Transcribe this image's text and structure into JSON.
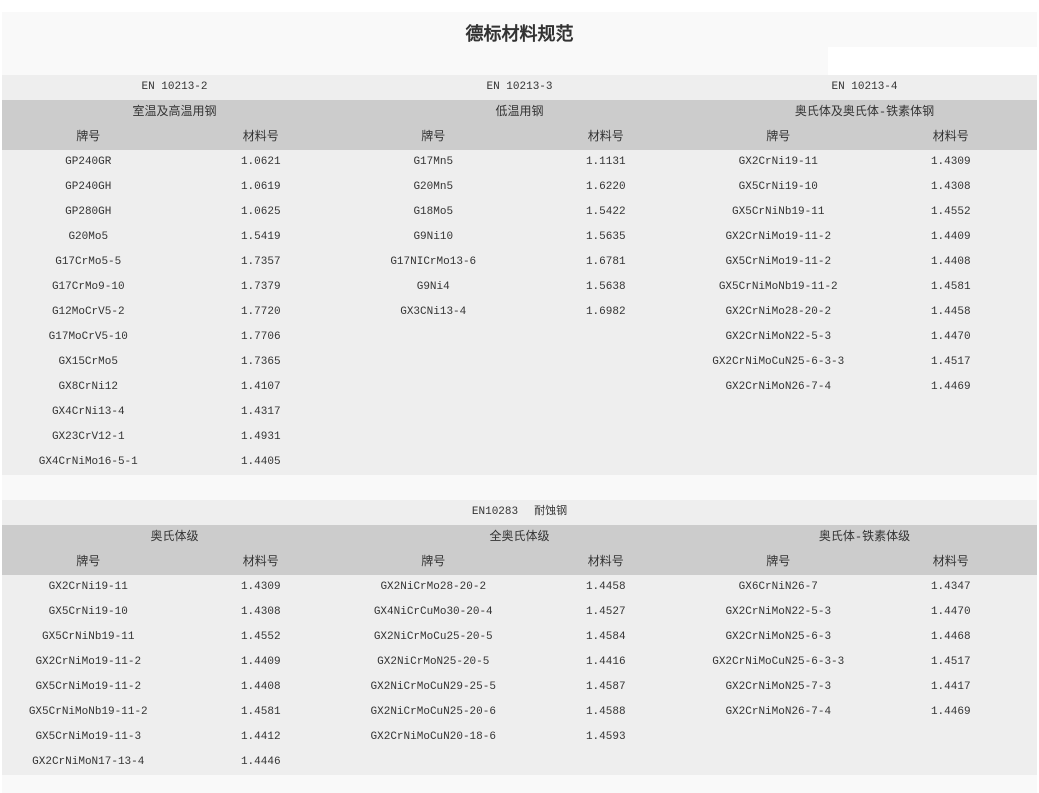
{
  "title": "德标材料规范",
  "section1": {
    "groups": [
      {
        "standard": "EN  10213-2",
        "category": "室温及高温用钢",
        "col_grade": "牌号",
        "col_material": "材料号",
        "rows": [
          [
            "GP240GR",
            "1.0621"
          ],
          [
            "GP240GH",
            "1.0619"
          ],
          [
            "GP280GH",
            "1.0625"
          ],
          [
            "G20Mo5",
            "1.5419"
          ],
          [
            "G17CrMo5-5",
            "1.7357"
          ],
          [
            "G17CrMo9-10",
            "1.7379"
          ],
          [
            "G12MoCrV5-2",
            "1.7720"
          ],
          [
            "G17MoCrV5-10",
            "1.7706"
          ],
          [
            "GX15CrMo5",
            "1.7365"
          ],
          [
            "GX8CrNi12",
            "1.4107"
          ],
          [
            "GX4CrNi13-4",
            "1.4317"
          ],
          [
            "GX23CrV12-1",
            "1.4931"
          ],
          [
            "GX4CrNiMo16-5-1",
            "1.4405"
          ]
        ]
      },
      {
        "standard": "EN  10213-3",
        "category": "低温用钢",
        "col_grade": "牌号",
        "col_material": "材料号",
        "rows": [
          [
            "G17Mn5",
            "1.1131"
          ],
          [
            "G20Mn5",
            "1.6220"
          ],
          [
            "G18Mo5",
            "1.5422"
          ],
          [
            "G9Ni10",
            "1.5635"
          ],
          [
            "G17NICrMo13-6",
            "1.6781"
          ],
          [
            "G9Ni4",
            "1.5638"
          ],
          [
            "GX3CNi13-4",
            "1.6982"
          ]
        ]
      },
      {
        "standard": "EN  10213-4",
        "category": "奥氏体及奥氏体-铁素体钢",
        "col_grade": "牌号",
        "col_material": "材料号",
        "rows": [
          [
            "GX2CrNi19-11",
            "1.4309"
          ],
          [
            "GX5CrNi19-10",
            "1.4308"
          ],
          [
            "GX5CrNiNb19-11",
            "1.4552"
          ],
          [
            "GX2CrNiMo19-11-2",
            "1.4409"
          ],
          [
            "GX5CrNiMo19-11-2",
            "1.4408"
          ],
          [
            "GX5CrNiMoNb19-11-2",
            "1.4581"
          ],
          [
            "GX2CrNiMo28-20-2",
            "1.4458"
          ],
          [
            "GX2CrNiMoN22-5-3",
            "1.4470"
          ],
          [
            "GX2CrNiMoCuN25-6-3-3",
            "1.4517"
          ],
          [
            "GX2CrNiMoN26-7-4",
            "1.4469"
          ]
        ]
      }
    ]
  },
  "section2": {
    "standard": "EN10283",
    "standard_title": "耐蚀钢",
    "groups": [
      {
        "category": "奥氏体级",
        "col_grade": "牌号",
        "col_material": "材料号",
        "rows": [
          [
            "GX2CrNi19-11",
            "1.4309"
          ],
          [
            "GX5CrNi19-10",
            "1.4308"
          ],
          [
            "GX5CrNiNb19-11",
            "1.4552"
          ],
          [
            "GX2CrNiMo19-11-2",
            "1.4409"
          ],
          [
            "GX5CrNiMo19-11-2",
            "1.4408"
          ],
          [
            "GX5CrNiMoNb19-11-2",
            "1.4581"
          ],
          [
            "GX5CrNiMo19-11-3",
            "1.4412"
          ],
          [
            "GX2CrNiMoN17-13-4",
            "1.4446"
          ]
        ]
      },
      {
        "category": "全奥氏体级",
        "col_grade": "牌号",
        "col_material": "材料号",
        "rows": [
          [
            "GX2NiCrMo28-20-2",
            "1.4458"
          ],
          [
            "GX4NiCrCuMo30-20-4",
            "1.4527"
          ],
          [
            "GX2NiCrMoCu25-20-5",
            "1.4584"
          ],
          [
            "GX2NiCrMoN25-20-5",
            "1.4416"
          ],
          [
            "GX2NiCrMoCuN29-25-5",
            "1.4587"
          ],
          [
            "GX2NiCrMoCuN25-20-6",
            "1.4588"
          ],
          [
            "GX2CrNiMoCuN20-18-6",
            "1.4593"
          ]
        ]
      },
      {
        "category": "奥氏体-铁素体级",
        "col_grade": "牌号",
        "col_material": "材料号",
        "rows": [
          [
            "GX6CrNiN26-7",
            "1.4347"
          ],
          [
            "GX2CrNiMoN22-5-3",
            "1.4470"
          ],
          [
            "GX2CrNiMoN25-6-3",
            "1.4468"
          ],
          [
            "GX2CrNiMoCuN25-6-3-3",
            "1.4517"
          ],
          [
            "GX2CrNiMoN25-7-3",
            "1.4417"
          ],
          [
            "GX2CrNiMoN26-7-4",
            "1.4469"
          ]
        ]
      }
    ]
  }
}
